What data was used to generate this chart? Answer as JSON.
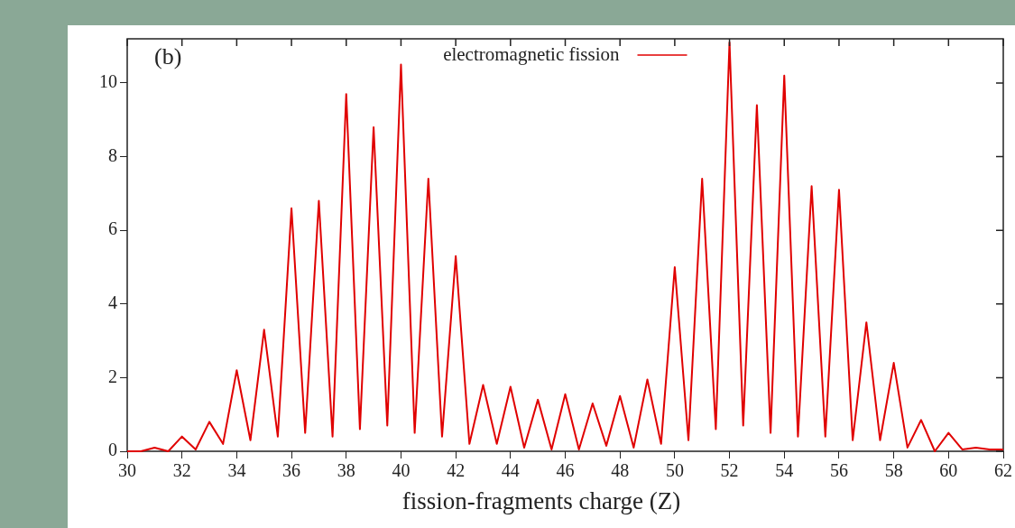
{
  "chart_data": {
    "type": "line",
    "xlabel": "fission-fragments charge (Z)",
    "annotations": [
      "(b)"
    ],
    "xlim": [
      30,
      62
    ],
    "xticks": [
      30,
      32,
      34,
      36,
      38,
      40,
      42,
      44,
      46,
      48,
      50,
      52,
      54,
      56,
      58,
      60,
      62
    ],
    "ylim": [
      0,
      11.2
    ],
    "yticks": [
      0,
      2,
      4,
      6,
      8,
      10
    ],
    "legend": "top",
    "grid": false,
    "marker": "none",
    "line_style": "solid",
    "series": [
      {
        "name": "electromagnetic fission",
        "color": "#e00000",
        "x": [
          30,
          30.5,
          31,
          31.5,
          32,
          32.5,
          33,
          33.5,
          34,
          34.5,
          35,
          35.5,
          36,
          36.5,
          37,
          37.5,
          38,
          38.5,
          39,
          39.5,
          40,
          40.5,
          41,
          41.5,
          42,
          42.5,
          43,
          43.5,
          44,
          44.5,
          45,
          45.5,
          46,
          46.5,
          47,
          47.5,
          48,
          48.5,
          49,
          49.5,
          50,
          50.5,
          51,
          51.5,
          52,
          52.5,
          53,
          53.5,
          54,
          54.5,
          55,
          55.5,
          56,
          56.5,
          57,
          57.5,
          58,
          58.5,
          59,
          59.5,
          60,
          60.5,
          61,
          61.5,
          62
        ],
        "values": [
          0,
          0,
          0.1,
          0,
          0.4,
          0.05,
          0.8,
          0.2,
          2.2,
          0.3,
          3.3,
          0.4,
          6.6,
          0.5,
          6.8,
          0.4,
          9.7,
          0.6,
          8.8,
          0.7,
          10.5,
          0.5,
          7.4,
          0.4,
          5.3,
          0.2,
          1.8,
          0.2,
          1.75,
          0.1,
          1.4,
          0.05,
          1.55,
          0.05,
          1.3,
          0.15,
          1.5,
          0.1,
          1.95,
          0.2,
          5.0,
          0.3,
          7.4,
          0.6,
          11.1,
          0.7,
          9.4,
          0.5,
          10.2,
          0.4,
          7.2,
          0.4,
          7.1,
          0.3,
          3.5,
          0.3,
          2.4,
          0.1,
          0.85,
          0,
          0.5,
          0.05,
          0.1,
          0.05,
          0.05
        ]
      }
    ]
  }
}
